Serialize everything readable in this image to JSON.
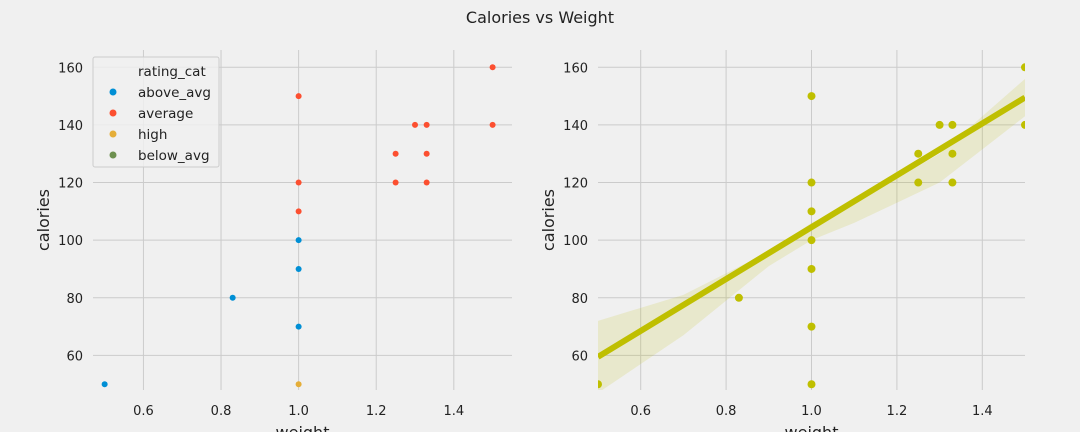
{
  "figure_title": "Calories vs Weight",
  "chart_data": [
    {
      "type": "scatter",
      "xlabel": "weight",
      "ylabel": "calories",
      "xlim": [
        0.47,
        1.55
      ],
      "ylim": [
        48,
        166
      ],
      "xticks": [
        "0.6",
        "0.8",
        "1.0",
        "1.2",
        "1.4"
      ],
      "yticks": [
        "60",
        "80",
        "100",
        "120",
        "140",
        "160"
      ],
      "grid": true,
      "legend": {
        "title": "rating_cat",
        "position": "top-left"
      },
      "series": [
        {
          "name": "above_avg",
          "color": "#008fd5",
          "points": [
            [
              0.5,
              50
            ],
            [
              0.83,
              80
            ],
            [
              1.0,
              70
            ],
            [
              1.0,
              90
            ],
            [
              1.0,
              100
            ]
          ]
        },
        {
          "name": "average",
          "color": "#fc4f30",
          "points": [
            [
              1.0,
              110
            ],
            [
              1.0,
              120
            ],
            [
              1.0,
              150
            ],
            [
              1.25,
              120
            ],
            [
              1.25,
              130
            ],
            [
              1.3,
              140
            ],
            [
              1.33,
              120
            ],
            [
              1.33,
              130
            ],
            [
              1.33,
              140
            ],
            [
              1.5,
              140
            ],
            [
              1.5,
              160
            ]
          ]
        },
        {
          "name": "high",
          "color": "#e5ae38",
          "points": [
            [
              1.0,
              50
            ]
          ]
        },
        {
          "name": "below_avg",
          "color": "#6d904f",
          "points": []
        }
      ]
    },
    {
      "type": "scatter",
      "xlabel": "weight",
      "ylabel": "calories",
      "xlim": [
        0.5,
        1.5
      ],
      "ylim": [
        48,
        166
      ],
      "xticks": [
        "0.6",
        "0.8",
        "1.0",
        "1.2",
        "1.4"
      ],
      "yticks": [
        "60",
        "80",
        "100",
        "120",
        "140",
        "160"
      ],
      "grid": true,
      "color": "#bfbf00",
      "points": [
        [
          0.5,
          50
        ],
        [
          0.83,
          80
        ],
        [
          1.0,
          50
        ],
        [
          1.0,
          70
        ],
        [
          1.0,
          90
        ],
        [
          1.0,
          100
        ],
        [
          1.0,
          110
        ],
        [
          1.0,
          120
        ],
        [
          1.0,
          150
        ],
        [
          1.25,
          120
        ],
        [
          1.25,
          130
        ],
        [
          1.3,
          140
        ],
        [
          1.33,
          120
        ],
        [
          1.33,
          130
        ],
        [
          1.33,
          140
        ],
        [
          1.5,
          140
        ],
        [
          1.5,
          160
        ]
      ],
      "regression": {
        "line": [
          [
            0.5,
            59.5
          ],
          [
            1.5,
            149.5
          ]
        ],
        "ci_upper": [
          [
            0.5,
            72
          ],
          [
            0.7,
            81
          ],
          [
            0.9,
            96
          ],
          [
            1.0,
            106
          ],
          [
            1.1,
            113
          ],
          [
            1.3,
            130
          ],
          [
            1.5,
            156
          ]
        ],
        "ci_lower": [
          [
            0.5,
            47
          ],
          [
            0.7,
            67
          ],
          [
            0.9,
            91
          ],
          [
            1.0,
            100
          ],
          [
            1.1,
            106
          ],
          [
            1.3,
            120
          ],
          [
            1.5,
            143
          ]
        ]
      }
    }
  ]
}
